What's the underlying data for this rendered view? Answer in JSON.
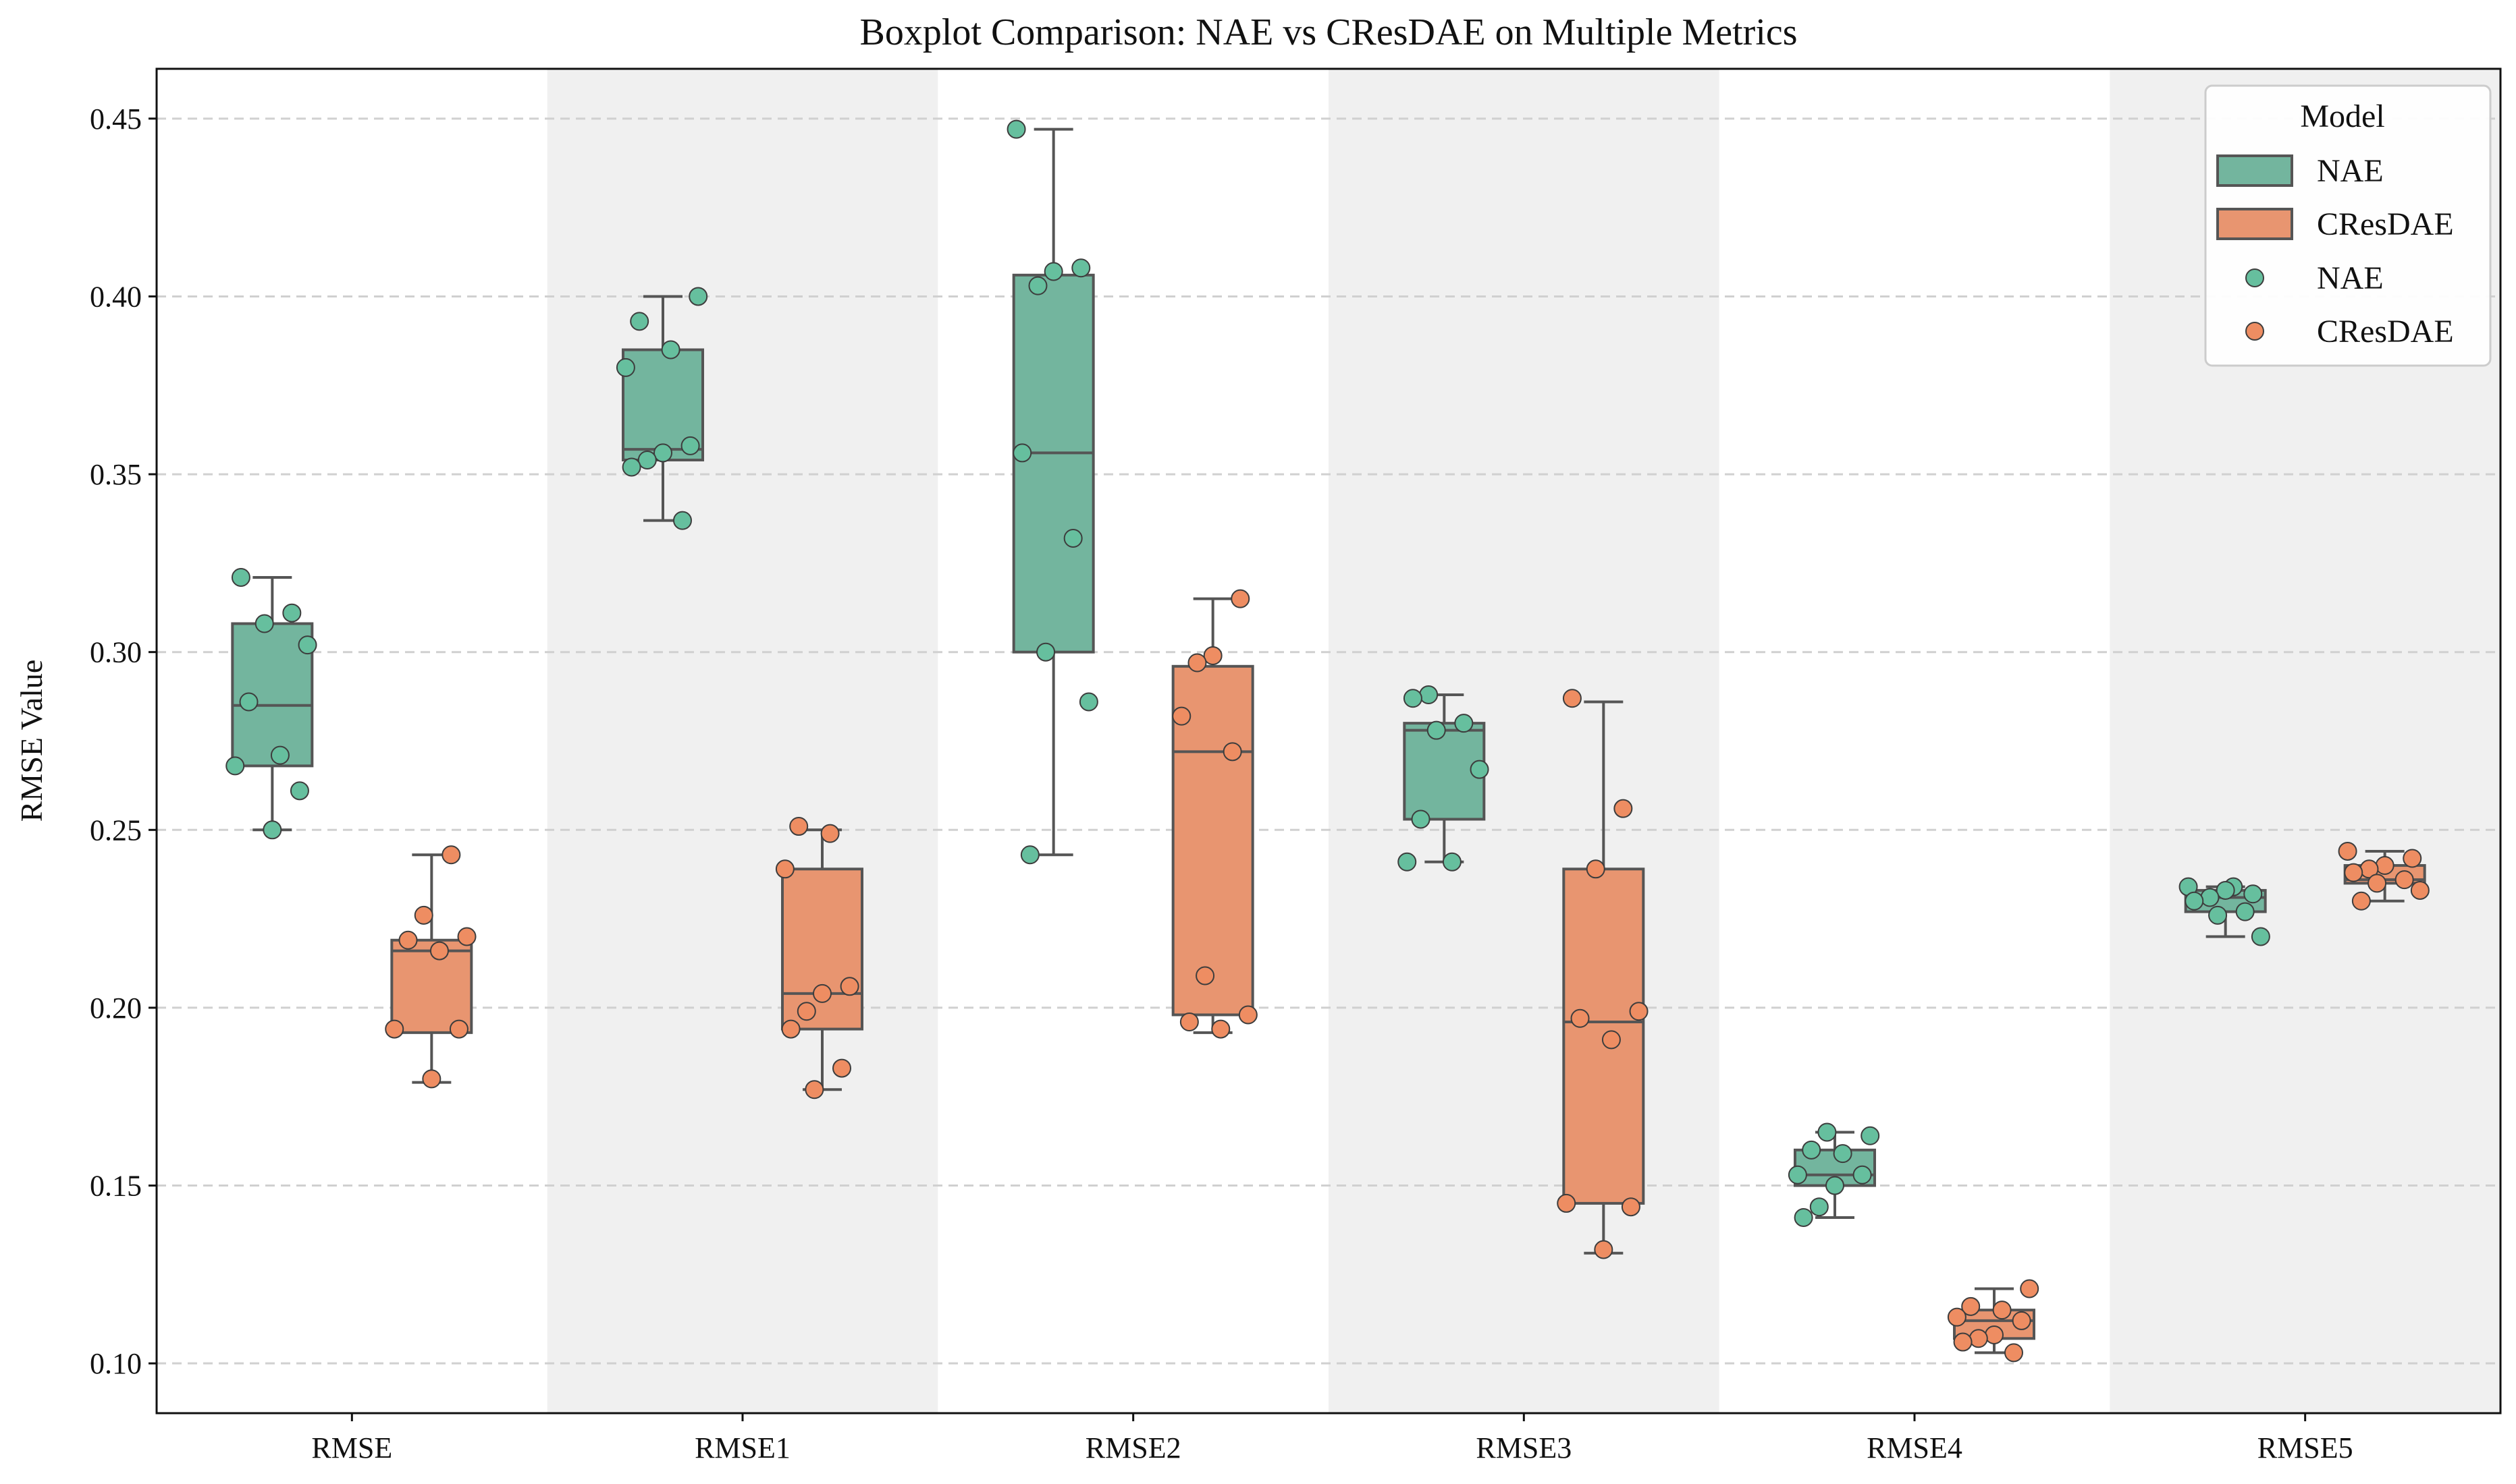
{
  "colors": {
    "nae": "#73b59e",
    "cresdae": "#e89570",
    "nae_point": "#66bf9e",
    "cresdae_point": "#ee8d62",
    "box_edge": "#555555",
    "point_edge": "#3d3d3d",
    "band": "#f0f0f0",
    "grid": "#d0d0d0"
  },
  "chart_data": {
    "type": "boxplot",
    "title": "Boxplot Comparison: NAE vs CResDAE on Multiple Metrics",
    "xlabel": "",
    "ylabel": "RMSE Value",
    "ylim": [
      0.086,
      0.464
    ],
    "yticks": [
      "0.10",
      "0.15",
      "0.20",
      "0.25",
      "0.30",
      "0.35",
      "0.40",
      "0.45"
    ],
    "ytick_values": [
      0.1,
      0.15,
      0.2,
      0.25,
      0.3,
      0.35,
      0.4,
      0.45
    ],
    "grid": "horizontal dashed",
    "categories": [
      "RMSE",
      "RMSE1",
      "RMSE2",
      "RMSE3",
      "RMSE4",
      "RMSE5"
    ],
    "legend": {
      "title": "Model",
      "position": "top-right",
      "entries": [
        {
          "label": "NAE",
          "kind": "box",
          "series": "nae"
        },
        {
          "label": "CResDAE",
          "kind": "box",
          "series": "cresdae"
        },
        {
          "label": "NAE",
          "kind": "point",
          "series": "nae"
        },
        {
          "label": "CResDAE",
          "kind": "point",
          "series": "cresdae"
        }
      ]
    },
    "series": [
      {
        "name": "NAE",
        "key": "nae",
        "boxes": [
          {
            "whislo": 0.25,
            "q1": 0.268,
            "med": 0.285,
            "q3": 0.308,
            "whishi": 0.321
          },
          {
            "whislo": 0.337,
            "q1": 0.354,
            "med": 0.357,
            "q3": 0.385,
            "whishi": 0.4
          },
          {
            "whislo": 0.243,
            "q1": 0.3,
            "med": 0.356,
            "q3": 0.406,
            "whishi": 0.447
          },
          {
            "whislo": 0.241,
            "q1": 0.253,
            "med": 0.278,
            "q3": 0.28,
            "whishi": 0.288
          },
          {
            "whislo": 0.141,
            "q1": 0.15,
            "med": 0.153,
            "q3": 0.16,
            "whishi": 0.165
          },
          {
            "whislo": 0.22,
            "q1": 0.227,
            "med": 0.231,
            "q3": 0.233,
            "whishi": 0.234
          }
        ],
        "points": [
          [
            0.321,
            0.311,
            0.308,
            0.302,
            0.286,
            0.271,
            0.268,
            0.261,
            0.25
          ],
          [
            0.4,
            0.393,
            0.385,
            0.38,
            0.358,
            0.356,
            0.354,
            0.352,
            0.337
          ],
          [
            0.447,
            0.408,
            0.407,
            0.403,
            0.356,
            0.332,
            0.3,
            0.286,
            0.243
          ],
          [
            0.288,
            0.287,
            0.28,
            0.278,
            0.267,
            0.253,
            0.241,
            0.241
          ],
          [
            0.165,
            0.164,
            0.16,
            0.159,
            0.153,
            0.153,
            0.15,
            0.144,
            0.141
          ],
          [
            0.234,
            0.234,
            0.232,
            0.233,
            0.231,
            0.23,
            0.227,
            0.226,
            0.22
          ]
        ]
      },
      {
        "name": "CResDAE",
        "key": "cresdae",
        "boxes": [
          {
            "whislo": 0.179,
            "q1": 0.193,
            "med": 0.216,
            "q3": 0.219,
            "whishi": 0.243
          },
          {
            "whislo": 0.177,
            "q1": 0.194,
            "med": 0.204,
            "q3": 0.239,
            "whishi": 0.25
          },
          {
            "whislo": 0.193,
            "q1": 0.198,
            "med": 0.272,
            "q3": 0.296,
            "whishi": 0.315
          },
          {
            "whislo": 0.131,
            "q1": 0.145,
            "med": 0.196,
            "q3": 0.239,
            "whishi": 0.286
          },
          {
            "whislo": 0.103,
            "q1": 0.107,
            "med": 0.112,
            "q3": 0.115,
            "whishi": 0.121
          },
          {
            "whislo": 0.23,
            "q1": 0.235,
            "med": 0.236,
            "q3": 0.24,
            "whishi": 0.244
          }
        ],
        "points": [
          [
            0.243,
            0.226,
            0.22,
            0.219,
            0.216,
            0.194,
            0.194,
            0.18
          ],
          [
            0.251,
            0.249,
            0.239,
            0.206,
            0.204,
            0.199,
            0.194,
            0.183,
            0.177
          ],
          [
            0.315,
            0.299,
            0.297,
            0.282,
            0.272,
            0.209,
            0.198,
            0.196,
            0.194
          ],
          [
            0.287,
            0.256,
            0.239,
            0.199,
            0.197,
            0.191,
            0.145,
            0.144,
            0.132
          ],
          [
            0.121,
            0.116,
            0.115,
            0.113,
            0.112,
            0.108,
            0.107,
            0.106,
            0.103
          ],
          [
            0.244,
            0.242,
            0.24,
            0.239,
            0.238,
            0.236,
            0.235,
            0.233,
            0.23
          ]
        ]
      }
    ]
  }
}
